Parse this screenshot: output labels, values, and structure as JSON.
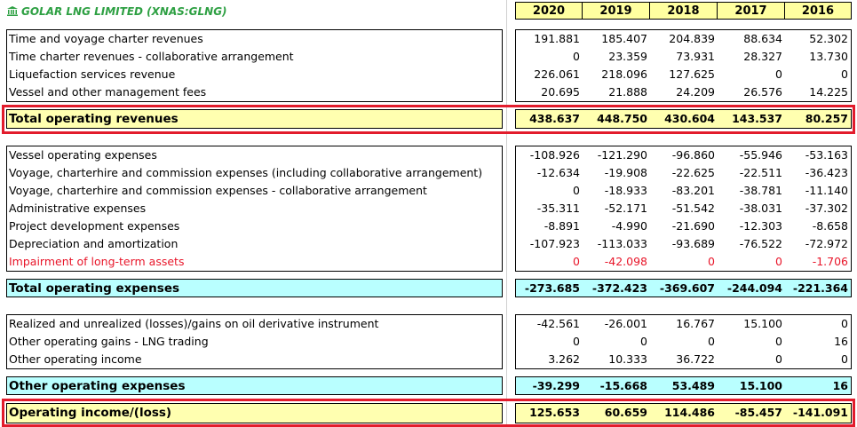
{
  "title": "GOLAR LNG LIMITED (XNAS:GLNG)",
  "years": [
    "2020",
    "2019",
    "2018",
    "2017",
    "2016"
  ],
  "colors": {
    "header_green": "#2ea043",
    "year_fill": "#ffffa0",
    "total_yellow": "#ffffb0",
    "total_cyan": "#b9ffff",
    "highlight_red": "#e21c2c",
    "negative_red": "#e8162a"
  },
  "revenues": [
    {
      "label": "Time and voyage charter revenues",
      "values": [
        "191.881",
        "185.407",
        "204.839",
        "88.634",
        "52.302"
      ]
    },
    {
      "label": "Time charter revenues - collaborative arrangement",
      "values": [
        "0",
        "23.359",
        "73.931",
        "28.327",
        "13.730"
      ]
    },
    {
      "label": "Liquefaction services revenue",
      "values": [
        "226.061",
        "218.096",
        "127.625",
        "0",
        "0"
      ]
    },
    {
      "label": "Vessel and other management fees",
      "values": [
        "20.695",
        "21.888",
        "24.209",
        "26.576",
        "14.225"
      ]
    }
  ],
  "total_revenues": {
    "label": "Total operating revenues",
    "values": [
      "438.637",
      "448.750",
      "430.604",
      "143.537",
      "80.257"
    ]
  },
  "expenses": [
    {
      "label": "Vessel operating expenses",
      "values": [
        "-108.926",
        "-121.290",
        "-96.860",
        "-55.946",
        "-53.163"
      ]
    },
    {
      "label": "Voyage, charterhire and commission expenses (including collaborative arrangement)",
      "values": [
        "-12.634",
        "-19.908",
        "-22.625",
        "-22.511",
        "-36.423"
      ]
    },
    {
      "label": "Voyage, charterhire and commission expenses - collaborative arrangement",
      "values": [
        "0",
        "-18.933",
        "-83.201",
        "-38.781",
        "-11.140"
      ]
    },
    {
      "label": "Administrative expenses",
      "values": [
        "-35.311",
        "-52.171",
        "-51.542",
        "-38.031",
        "-37.302"
      ]
    },
    {
      "label": "Project development expenses",
      "values": [
        "-8.891",
        "-4.990",
        "-21.690",
        "-12.303",
        "-8.658"
      ]
    },
    {
      "label": "Depreciation and amortization",
      "values": [
        "-107.923",
        "-113.033",
        "-93.689",
        "-76.522",
        "-72.972"
      ]
    },
    {
      "label": "Impairment of long-term assets",
      "values": [
        "0",
        "-42.098",
        "0",
        "0",
        "-1.706"
      ]
    }
  ],
  "total_expenses": {
    "label": "Total operating expenses",
    "values": [
      "-273.685",
      "-372.423",
      "-369.607",
      "-244.094",
      "-221.364"
    ]
  },
  "other": [
    {
      "label": "Realized and unrealized (losses)/gains on oil derivative instrument",
      "values": [
        "-42.561",
        "-26.001",
        "16.767",
        "15.100",
        "0"
      ]
    },
    {
      "label": "Other operating gains - LNG trading",
      "values": [
        "0",
        "0",
        "0",
        "0",
        "16"
      ]
    },
    {
      "label": "Other operating income",
      "values": [
        "3.262",
        "10.333",
        "36.722",
        "0",
        "0"
      ]
    }
  ],
  "total_other": {
    "label": "Other operating expenses",
    "values": [
      "-39.299",
      "-15.668",
      "53.489",
      "15.100",
      "16"
    ]
  },
  "operating_income": {
    "label": "Operating income/(loss)",
    "values": [
      "125.653",
      "60.659",
      "114.486",
      "-85.457",
      "-141.091"
    ]
  }
}
